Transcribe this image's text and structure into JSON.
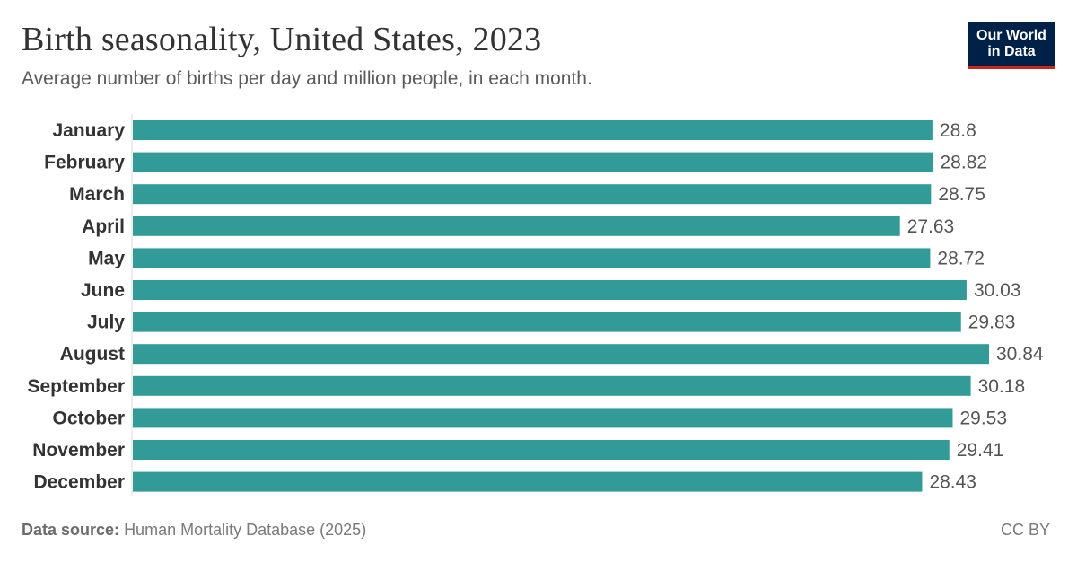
{
  "header": {
    "title": "Birth seasonality, United States, 2023",
    "subtitle": "Average number of births per day and million people, in each month."
  },
  "logo": {
    "line1": "Our World",
    "line2": "in Data"
  },
  "footer": {
    "source_label": "Data source:",
    "source_text": "Human Mortality Database (2025)",
    "license": "CC BY"
  },
  "colors": {
    "bar": "#329b98",
    "axis": "#d9d9d9",
    "logo_bg": "#002147",
    "logo_accent": "#ce261e"
  },
  "chart_data": {
    "type": "bar",
    "orientation": "horizontal",
    "title": "Birth seasonality, United States, 2023",
    "subtitle": "Average number of births per day and million people, in each month.",
    "categories": [
      "January",
      "February",
      "March",
      "April",
      "May",
      "June",
      "July",
      "August",
      "September",
      "October",
      "November",
      "December"
    ],
    "values": [
      28.8,
      28.82,
      28.75,
      27.63,
      28.72,
      30.03,
      29.83,
      30.84,
      30.18,
      29.53,
      29.41,
      28.43
    ],
    "value_labels": [
      "28.8",
      "28.82",
      "28.75",
      "27.63",
      "28.72",
      "30.03",
      "29.83",
      "30.84",
      "30.18",
      "29.53",
      "29.41",
      "28.43"
    ],
    "xlim": [
      0,
      30.84
    ],
    "grid": false,
    "legend": "none"
  }
}
